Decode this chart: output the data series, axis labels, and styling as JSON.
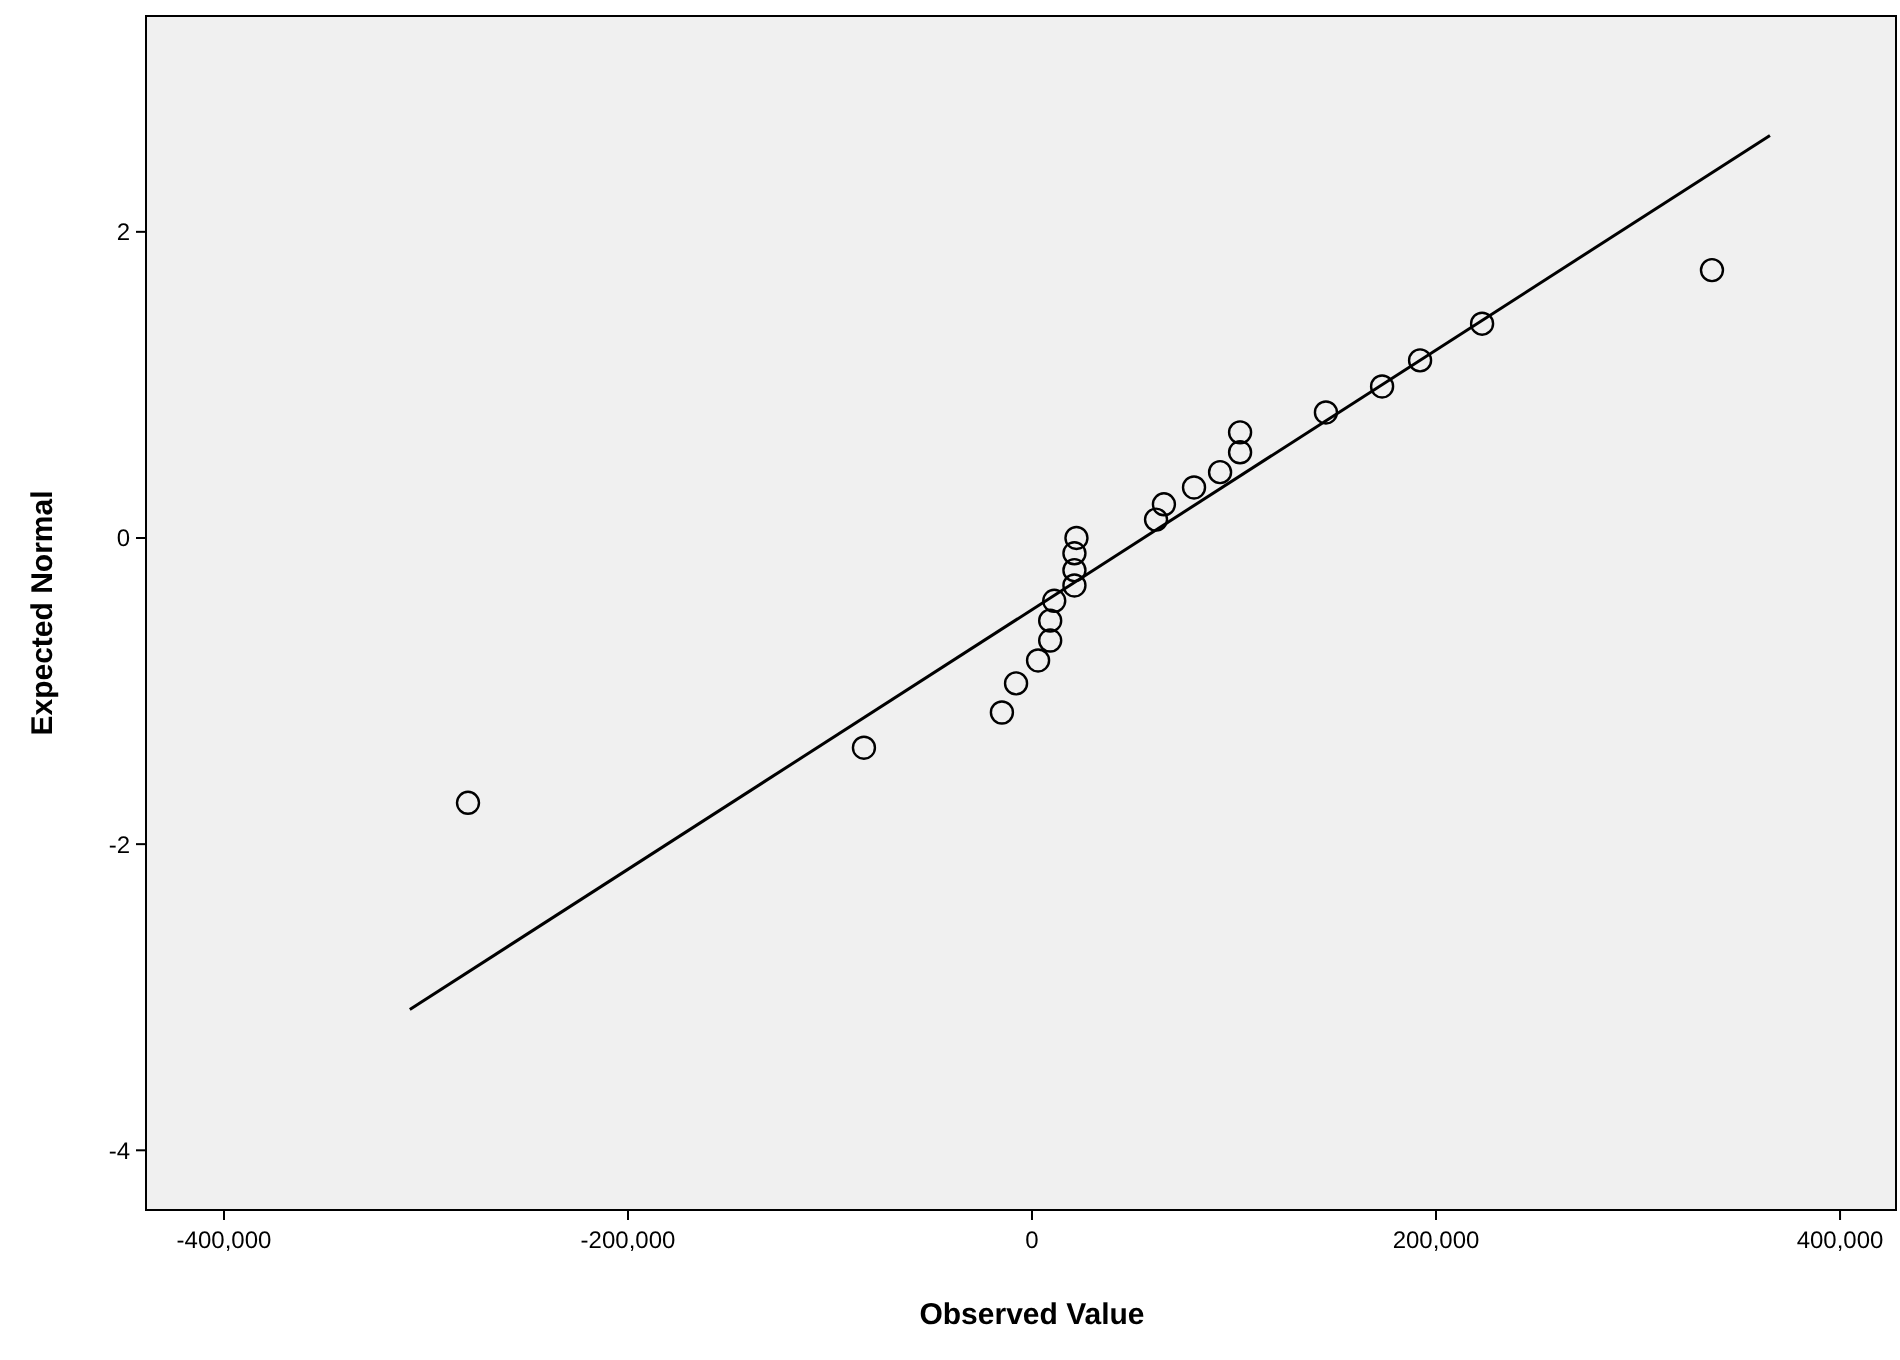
{
  "chart_data": {
    "type": "scatter",
    "xlabel": "Observed Value",
    "ylabel": "Expected Normal",
    "xlim": [
      -438600,
      427700
    ],
    "ylim": [
      -4.39,
      3.41
    ],
    "xticks": [
      {
        "value": -400000,
        "label": "-400,000"
      },
      {
        "value": -200000,
        "label": "-200,000"
      },
      0,
      {
        "value": 200000,
        "label": "200,000"
      },
      {
        "value": 400000,
        "label": "400,000"
      }
    ],
    "yticks": [
      -4,
      -2,
      0,
      2
    ],
    "grid": false,
    "series": [
      {
        "color": "#000000",
        "marker": "circle",
        "x": [
          -279200,
          -83200,
          -14900,
          -7900,
          3000,
          9000,
          9000,
          11000,
          21000,
          21000,
          21000,
          22000,
          61400,
          65300,
          80200,
          93100,
          103000,
          103000,
          145500,
          173300,
          192100,
          222800,
          336600
        ],
        "values": [
          -1.73,
          -1.37,
          -1.14,
          -0.95,
          -0.8,
          -0.67,
          -0.54,
          -0.41,
          -0.31,
          -0.21,
          -0.1,
          0,
          0.12,
          0.22,
          0.33,
          0.43,
          0.56,
          0.69,
          0.82,
          0.99,
          1.16,
          1.4,
          1.75
        ]
      },
      {
        "type": "line",
        "color": "#000000",
        "marker": "none",
        "x": [
          -308000,
          365300
        ],
        "values": [
          -3.08,
          2.63
        ]
      }
    ]
  }
}
